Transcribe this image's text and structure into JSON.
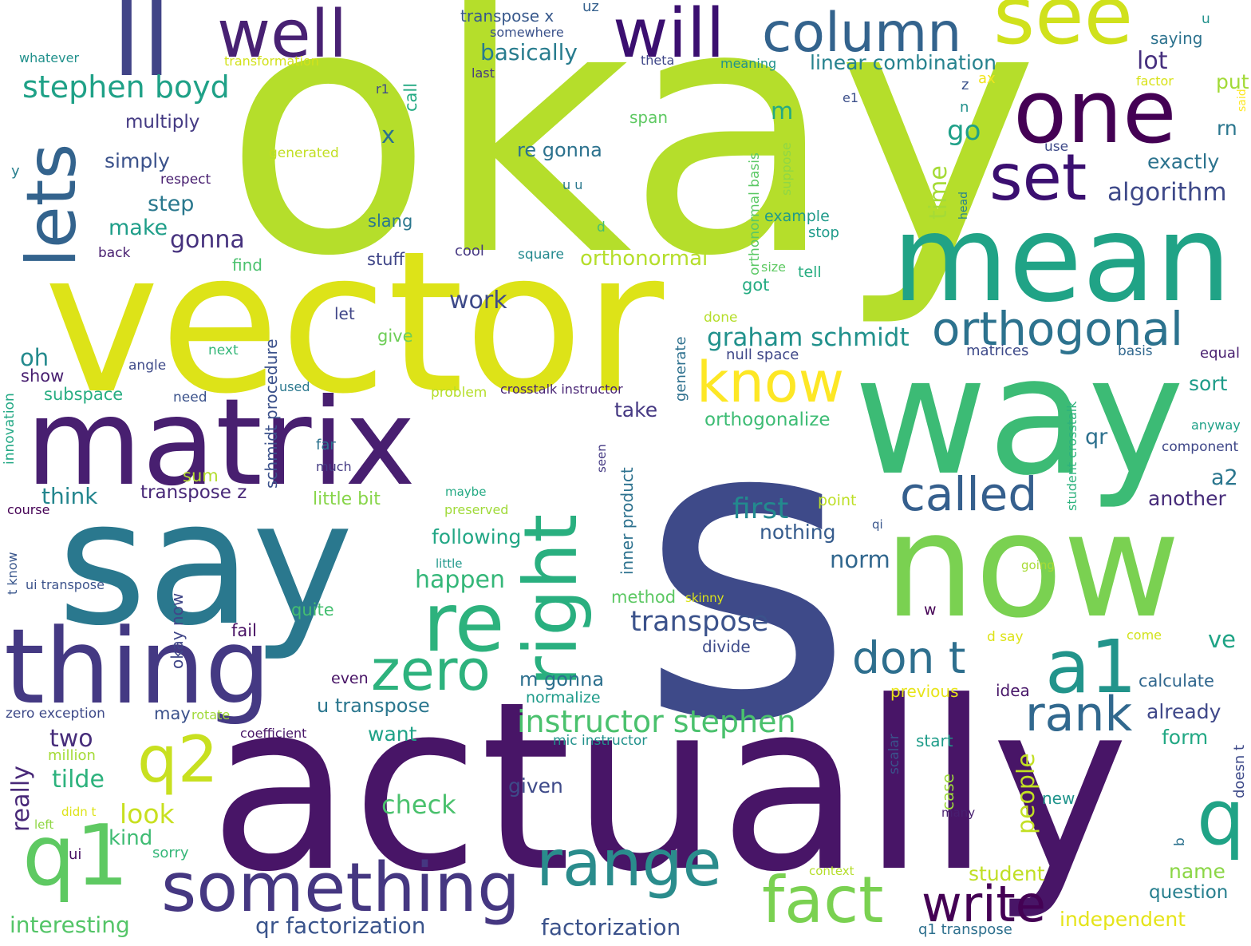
{
  "words": [
    {
      "text": "okay",
      "color": "#b5de2b"
    },
    {
      "text": "s",
      "color": "#3e4a89"
    },
    {
      "text": "actually",
      "color": "#481567"
    },
    {
      "text": "vector",
      "color": "#dde318"
    },
    {
      "text": "way",
      "color": "#3cbb75"
    },
    {
      "text": "say",
      "color": "#2a788e"
    },
    {
      "text": "matrix",
      "color": "#481f70"
    },
    {
      "text": "now",
      "color": "#7ad151"
    },
    {
      "text": "mean",
      "color": "#20a386"
    },
    {
      "text": "thing",
      "color": "#443983"
    },
    {
      "text": "ll",
      "color": "#414487"
    },
    {
      "text": "one",
      "color": "#440154"
    },
    {
      "text": "see",
      "color": "#d0e11c"
    },
    {
      "text": "will",
      "color": "#3b0f70"
    },
    {
      "text": "well",
      "color": "#482173"
    },
    {
      "text": "column",
      "color": "#33638d"
    },
    {
      "text": "lets",
      "color": "#33638d"
    },
    {
      "text": "right",
      "color": "#29af7f"
    },
    {
      "text": "re",
      "color": "#2db27d"
    },
    {
      "text": "q1",
      "color": "#5ec962"
    },
    {
      "text": "set",
      "color": "#3b0f70"
    },
    {
      "text": "something",
      "color": "#453781"
    },
    {
      "text": "range",
      "color": "#2a8c8c"
    },
    {
      "text": "fact",
      "color": "#7ad151"
    },
    {
      "text": "a1",
      "color": "#22948b"
    },
    {
      "text": "zero",
      "color": "#2db27d"
    },
    {
      "text": "know",
      "color": "#fde725"
    },
    {
      "text": "orthogonal",
      "color": "#2c728e"
    },
    {
      "text": "q2",
      "color": "#c8e020"
    },
    {
      "text": "q",
      "color": "#20a386"
    },
    {
      "text": "write",
      "color": "#440154"
    },
    {
      "text": "called",
      "color": "#355f8d"
    },
    {
      "text": "rank",
      "color": "#31688e"
    },
    {
      "text": "don t",
      "color": "#2e6f8e"
    },
    {
      "text": "instructor stephen",
      "color": "#4ac16d"
    },
    {
      "text": "transpose",
      "color": "#3b528b"
    },
    {
      "text": "first",
      "color": "#23898e"
    },
    {
      "text": "stephen boyd",
      "color": "#1fa187"
    },
    {
      "text": "algorithm",
      "color": "#3e4989"
    },
    {
      "text": "graham schmidt",
      "color": "#21918c"
    },
    {
      "text": "basically",
      "color": "#287c8e"
    },
    {
      "text": "linear combination",
      "color": "#26828e"
    },
    {
      "text": "qr factorization",
      "color": "#3a548c"
    },
    {
      "text": "factorization",
      "color": "#3b528b"
    },
    {
      "text": "orthonormal",
      "color": "#b5de2b"
    },
    {
      "text": "interesting",
      "color": "#54c568"
    },
    {
      "text": "happen",
      "color": "#35b779"
    },
    {
      "text": "check",
      "color": "#4ac16d"
    },
    {
      "text": "look",
      "color": "#c8e020"
    },
    {
      "text": "independent",
      "color": "#e5e419"
    },
    {
      "text": "student",
      "color": "#c0df25"
    },
    {
      "text": "u transpose",
      "color": "#2a768e"
    },
    {
      "text": "tilde",
      "color": "#2db27d"
    },
    {
      "text": "gonna",
      "color": "#46327e"
    },
    {
      "text": "work",
      "color": "#3e4a89"
    },
    {
      "text": "two",
      "color": "#472d7b"
    },
    {
      "text": "think",
      "color": "#24868e"
    },
    {
      "text": "people",
      "color": "#c2df23"
    },
    {
      "text": "really",
      "color": "#482878"
    },
    {
      "text": "lot",
      "color": "#462f7e"
    },
    {
      "text": "make",
      "color": "#1f9e89"
    },
    {
      "text": "step",
      "color": "#2a788e"
    },
    {
      "text": "simply",
      "color": "#3b528b"
    },
    {
      "text": "multiply",
      "color": "#443a83"
    },
    {
      "text": "go",
      "color": "#1fa088"
    },
    {
      "text": "time",
      "color": "#a5db36"
    },
    {
      "text": "re gonna",
      "color": "#2c728e"
    },
    {
      "text": "orthogonalize",
      "color": "#3dbc74"
    },
    {
      "text": "take",
      "color": "#453882"
    },
    {
      "text": "norm",
      "color": "#31678e"
    },
    {
      "text": "nothing",
      "color": "#365c8d"
    },
    {
      "text": "following",
      "color": "#22a785"
    },
    {
      "text": "given",
      "color": "#3e4a89"
    },
    {
      "text": "want",
      "color": "#1fa287"
    },
    {
      "text": "kind",
      "color": "#3fbc73"
    },
    {
      "text": "m gonna",
      "color": "#2d708e"
    },
    {
      "text": "put",
      "color": "#a2da37"
    },
    {
      "text": "exactly",
      "color": "#2c738e"
    },
    {
      "text": "sort",
      "color": "#1e9c89"
    },
    {
      "text": "qr",
      "color": "#2d718e"
    },
    {
      "text": "a2",
      "color": "#2a768e"
    },
    {
      "text": "another",
      "color": "#472c7a"
    },
    {
      "text": "ve",
      "color": "#20a486"
    },
    {
      "text": "already",
      "color": "#3f4889"
    },
    {
      "text": "form",
      "color": "#22a884"
    },
    {
      "text": "name",
      "color": "#8bd646"
    },
    {
      "text": "question",
      "color": "#277f8e"
    },
    {
      "text": "calculate",
      "color": "#31678e"
    },
    {
      "text": "x",
      "color": "#2c728e"
    },
    {
      "text": "m",
      "color": "#23a983"
    },
    {
      "text": "oh",
      "color": "#238a8d"
    },
    {
      "text": "show",
      "color": "#481f70"
    },
    {
      "text": "subspace",
      "color": "#27ad81"
    },
    {
      "text": "rn",
      "color": "#2a768e"
    },
    {
      "text": "transpose z",
      "color": "#482878"
    },
    {
      "text": "little bit",
      "color": "#87d549"
    },
    {
      "text": "sum",
      "color": "#b2dd2d"
    },
    {
      "text": "method",
      "color": "#5cc863"
    },
    {
      "text": "quite",
      "color": "#44bf70"
    },
    {
      "text": "fail",
      "color": "#471063"
    },
    {
      "text": "divide",
      "color": "#3e4c8a"
    },
    {
      "text": "slang",
      "color": "#2a778e"
    },
    {
      "text": "stuff",
      "color": "#404688"
    },
    {
      "text": "give",
      "color": "#6ece58"
    },
    {
      "text": "got",
      "color": "#25ac82"
    },
    {
      "text": "example",
      "color": "#1f9a8a"
    },
    {
      "text": "call",
      "color": "#24aa83"
    },
    {
      "text": "even",
      "color": "#471365"
    },
    {
      "text": "may",
      "color": "#3b518b"
    },
    {
      "text": "normalize",
      "color": "#1e9b8a"
    },
    {
      "text": "previous",
      "color": "#e7e419"
    },
    {
      "text": "idea",
      "color": "#481769"
    },
    {
      "text": "start",
      "color": "#1e9c89"
    },
    {
      "text": "new",
      "color": "#1f948c"
    },
    {
      "text": "case",
      "color": "#9dd93b"
    },
    {
      "text": "null space",
      "color": "#3f4788"
    },
    {
      "text": "inner product",
      "color": "#2c718e"
    },
    {
      "text": "schmidt procedure",
      "color": "#3b518b"
    },
    {
      "text": "okay now",
      "color": "#404688"
    },
    {
      "text": "orthonormal basis",
      "color": "#5ac864"
    },
    {
      "text": "transpose x",
      "color": "#38598c"
    },
    {
      "text": "uz",
      "color": "#34608d"
    },
    {
      "text": "somewhere",
      "color": "#3b528b"
    },
    {
      "text": "transformation",
      "color": "#d2e21b"
    },
    {
      "text": "theta",
      "color": "#3f4788"
    },
    {
      "text": "meaning",
      "color": "#20928c"
    },
    {
      "text": "last",
      "color": "#453882"
    },
    {
      "text": "u",
      "color": "#21918c"
    },
    {
      "text": "saying",
      "color": "#2c728e"
    },
    {
      "text": "factor",
      "color": "#d8e219"
    },
    {
      "text": "said",
      "color": "#fde725"
    },
    {
      "text": "whatever",
      "color": "#21918c"
    },
    {
      "text": "z",
      "color": "#3b528b"
    },
    {
      "text": "ax",
      "color": "#f1e51d"
    },
    {
      "text": "n",
      "color": "#21918c"
    },
    {
      "text": "e1",
      "color": "#3c4f8a"
    },
    {
      "text": "r1",
      "color": "#3e4a89"
    },
    {
      "text": "y",
      "color": "#277f8e"
    },
    {
      "text": "span",
      "color": "#5ec962"
    },
    {
      "text": "generated",
      "color": "#c2df23"
    },
    {
      "text": "respect",
      "color": "#481f70"
    },
    {
      "text": "u u",
      "color": "#2a788e"
    },
    {
      "text": "suppose",
      "color": "#8fd744"
    },
    {
      "text": "head",
      "color": "#26828e"
    },
    {
      "text": "use",
      "color": "#3e4a89"
    },
    {
      "text": "d",
      "color": "#44bf70"
    },
    {
      "text": "back",
      "color": "#481f70"
    },
    {
      "text": "cool",
      "color": "#453781"
    },
    {
      "text": "square",
      "color": "#23898e"
    },
    {
      "text": "size",
      "color": "#5ec962"
    },
    {
      "text": "tell",
      "color": "#27ad81"
    },
    {
      "text": "stop",
      "color": "#1e9b8a"
    },
    {
      "text": "find",
      "color": "#4ac16d"
    },
    {
      "text": "let",
      "color": "#404688"
    },
    {
      "text": "done",
      "color": "#b5de2b"
    },
    {
      "text": "generate",
      "color": "#2d708e"
    },
    {
      "text": "next",
      "color": "#35b779"
    },
    {
      "text": "matrices",
      "color": "#3e4a89"
    },
    {
      "text": "basis",
      "color": "#31688e"
    },
    {
      "text": "equal",
      "color": "#481f70"
    },
    {
      "text": "angle",
      "color": "#3e4a89"
    },
    {
      "text": "innovation",
      "color": "#22a884"
    },
    {
      "text": "need",
      "color": "#3b528b"
    },
    {
      "text": "used",
      "color": "#2a788e"
    },
    {
      "text": "problem",
      "color": "#b5de2b"
    },
    {
      "text": "crosstalk instructor",
      "color": "#482475"
    },
    {
      "text": "student crosstalk",
      "color": "#2db27d"
    },
    {
      "text": "anyway",
      "color": "#1fa188"
    },
    {
      "text": "component",
      "color": "#3f4788"
    },
    {
      "text": "far",
      "color": "#2c728e"
    },
    {
      "text": "much",
      "color": "#443a83"
    },
    {
      "text": "seen",
      "color": "#443983"
    },
    {
      "text": "maybe",
      "color": "#23a983"
    },
    {
      "text": "preserved",
      "color": "#a0da39"
    },
    {
      "text": "point",
      "color": "#bddf26"
    },
    {
      "text": "course",
      "color": "#440154"
    },
    {
      "text": "qi",
      "color": "#39568c"
    },
    {
      "text": "t know",
      "color": "#39568c"
    },
    {
      "text": "ui transpose",
      "color": "#3b528b"
    },
    {
      "text": "little",
      "color": "#1f988b"
    },
    {
      "text": "skinny",
      "color": "#dae319"
    },
    {
      "text": "going",
      "color": "#a8db34"
    },
    {
      "text": "w",
      "color": "#440154"
    },
    {
      "text": "d say",
      "color": "#dde318"
    },
    {
      "text": "come",
      "color": "#d2e21b"
    },
    {
      "text": "zero exception",
      "color": "#3e4a89"
    },
    {
      "text": "rotate",
      "color": "#a0da39"
    },
    {
      "text": "coefficient",
      "color": "#481668"
    },
    {
      "text": "mic instructor",
      "color": "#21918c"
    },
    {
      "text": "scalar",
      "color": "#3b528b"
    },
    {
      "text": "doesn t",
      "color": "#3e4a89"
    },
    {
      "text": "million",
      "color": "#a5db36"
    },
    {
      "text": "didn t",
      "color": "#dde318"
    },
    {
      "text": "left",
      "color": "#8fd744"
    },
    {
      "text": "many",
      "color": "#481f70"
    },
    {
      "text": "b",
      "color": "#2c728e"
    },
    {
      "text": "ui",
      "color": "#471063"
    },
    {
      "text": "sorry",
      "color": "#35b779"
    },
    {
      "text": "context",
      "color": "#b5de2b"
    },
    {
      "text": "q1 transpose",
      "color": "#2d708e"
    }
  ]
}
